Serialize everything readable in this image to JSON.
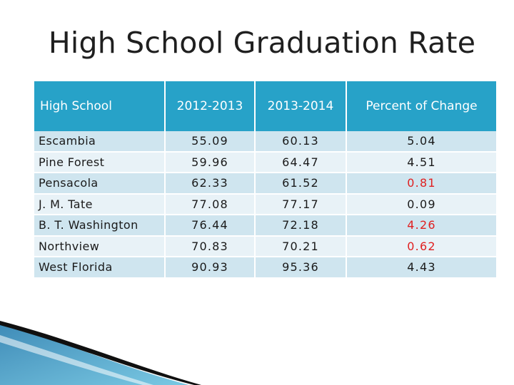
{
  "title": "High School Graduation Rate",
  "headers": [
    "High School",
    "2012-2013",
    "2013-2014",
    "Percent of Change"
  ],
  "rows": [
    {
      "school": "Escambia",
      "y2012": "55.09",
      "y2013": "60.13",
      "change": "5.04",
      "change_color": "#1a1a1a"
    },
    {
      "school": "Pine Forest",
      "y2012": "59.96",
      "y2013": "64.47",
      "change": "4.51",
      "change_color": "#1a1a1a"
    },
    {
      "school": "Pensacola",
      "y2012": "62.33",
      "y2013": "61.52",
      "change": "0.81",
      "change_color": "#e02020"
    },
    {
      "school": "J. M. Tate",
      "y2012": "77.08",
      "y2013": "77.17",
      "change": "0.09",
      "change_color": "#1a1a1a"
    },
    {
      "school": "B. T. Washington",
      "y2012": "76.44",
      "y2013": "72.18",
      "change": "4.26",
      "change_color": "#e02020"
    },
    {
      "school": "Northview",
      "y2012": "70.83",
      "y2013": "70.21",
      "change": "0.62",
      "change_color": "#e02020"
    },
    {
      "school": "West Florida",
      "y2012": "90.93",
      "y2013": "95.36",
      "change": "4.43",
      "change_color": "#1a1a1a"
    }
  ]
}
